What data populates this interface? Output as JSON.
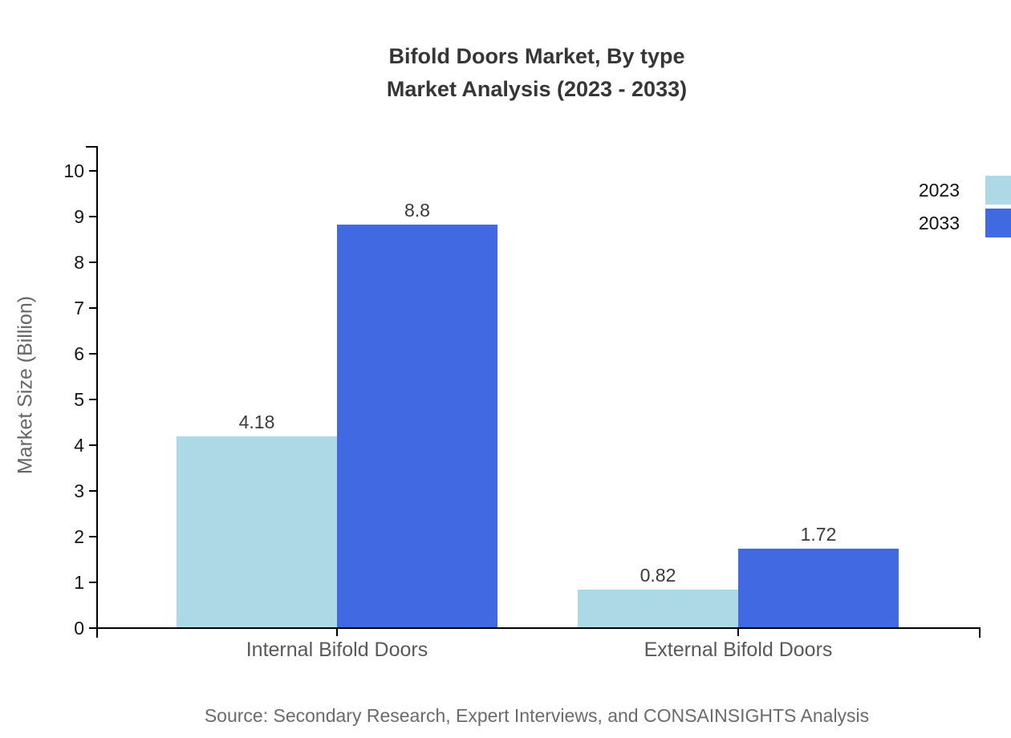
{
  "title": {
    "line1": "Bifold Doors Market, By type",
    "line2": "Market Analysis (2023 - 2033)"
  },
  "source": "Source: Secondary Research, Expert Interviews, and CONSAINSIGHTS Analysis",
  "chart_data": {
    "type": "bar",
    "title": "Bifold Doors Market, By type Market Analysis (2023 - 2033)",
    "categories": [
      "Internal Bifold Doors",
      "External Bifold Doors"
    ],
    "series": [
      {
        "name": "2023",
        "color": "#ADD8E6",
        "values": [
          4.18,
          0.82
        ]
      },
      {
        "name": "2033",
        "color": "#4169E1",
        "values": [
          8.8,
          1.72
        ]
      }
    ],
    "value_labels": [
      [
        "4.18",
        "0.82"
      ],
      [
        "8.8",
        "1.72"
      ]
    ],
    "xlabel": "",
    "ylabel": "Market Size (Billion)",
    "ylim": [
      0,
      10
    ],
    "ytick_step": 1,
    "yticks": [
      0,
      1,
      2,
      3,
      4,
      5,
      6,
      7,
      8,
      9,
      10
    ],
    "grid": false,
    "legend_position": "top-right",
    "axis_color": "#000000",
    "background_color": "#ffffff"
  }
}
